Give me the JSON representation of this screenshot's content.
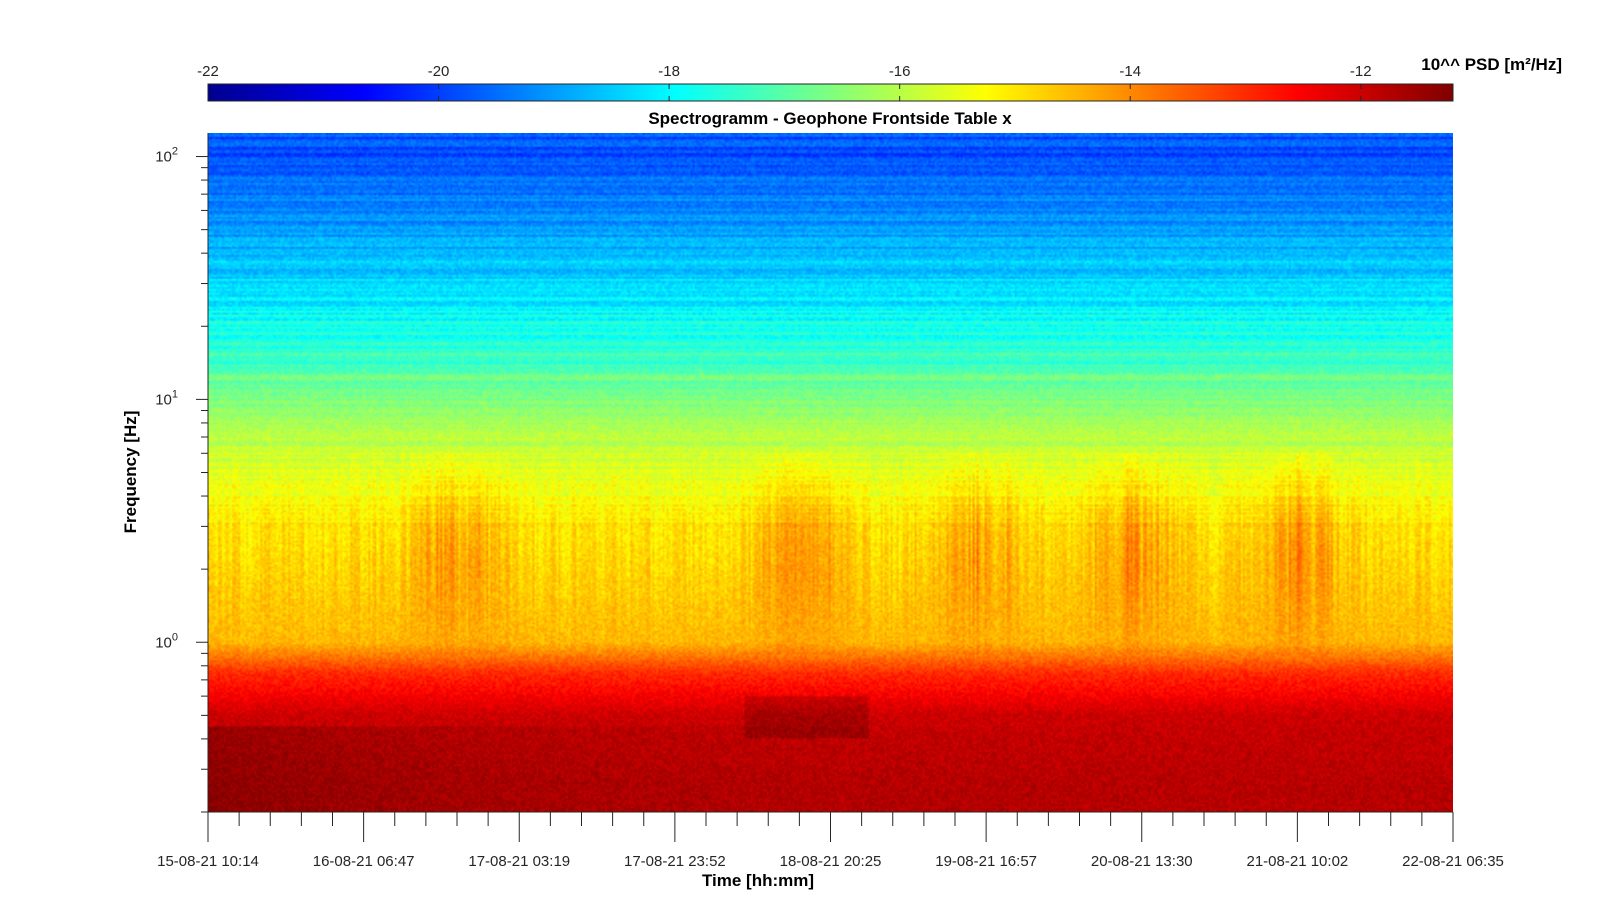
{
  "chart_data": {
    "type": "heatmap",
    "title": "Spectrogramm - Geophone Frontside Table x",
    "xlabel": "Time [hh:mm]",
    "ylabel": "Frequency [Hz]",
    "y_scale": "log",
    "ylim": [
      0.2,
      125
    ],
    "y_ticks": [
      {
        "base": "10",
        "exp": "0",
        "value": 1
      },
      {
        "base": "10",
        "exp": "1",
        "value": 10
      },
      {
        "base": "10",
        "exp": "2",
        "value": 100
      }
    ],
    "x_ticks": [
      "15-08-21 10:14",
      "16-08-21 06:47",
      "17-08-21 03:19",
      "17-08-21 23:52",
      "18-08-21 20:25",
      "19-08-21 16:57",
      "20-08-21 13:30",
      "21-08-21 10:02",
      "22-08-21 06:35"
    ],
    "colorbar": {
      "label": "10^^ PSD [m²/Hz]",
      "range": [
        -22,
        -11.2
      ],
      "ticks": [
        "-22",
        "-20",
        "-18",
        "-16",
        "-14",
        "-12"
      ],
      "colormap": "jet"
    },
    "approx_psd_profile": [
      {
        "freq_hz": 0.25,
        "log10_psd": -11.8
      },
      {
        "freq_hz": 0.5,
        "log10_psd": -12.0
      },
      {
        "freq_hz": 0.75,
        "log10_psd": -13.0
      },
      {
        "freq_hz": 1,
        "log10_psd": -14.5
      },
      {
        "freq_hz": 3,
        "log10_psd": -15.0
      },
      {
        "freq_hz": 6,
        "log10_psd": -15.8
      },
      {
        "freq_hz": 10,
        "log10_psd": -16.6
      },
      {
        "freq_hz": 20,
        "log10_psd": -17.8
      },
      {
        "freq_hz": 50,
        "log10_psd": -19.0
      },
      {
        "freq_hz": 100,
        "log10_psd": -19.8
      }
    ]
  }
}
